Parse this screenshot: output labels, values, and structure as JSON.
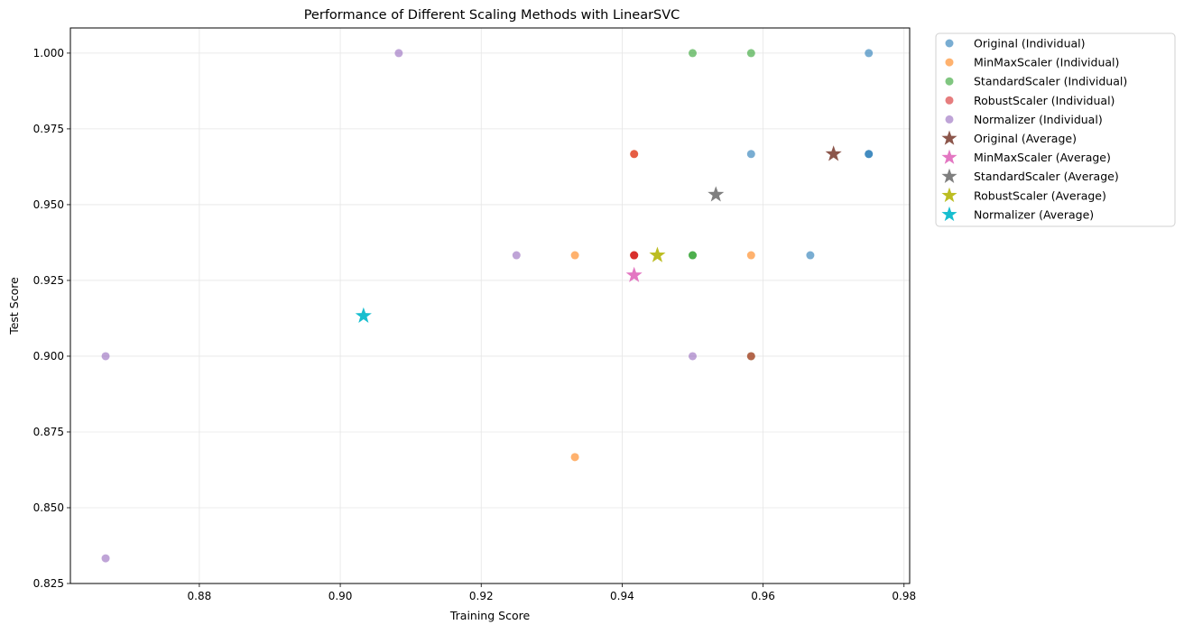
{
  "chart_data": {
    "type": "scatter",
    "title": "Performance of Different Scaling Methods with LinearSVC",
    "xlabel": "Training Score",
    "ylabel": "Test Score",
    "xlim": [
      0.8617,
      0.9808
    ],
    "ylim": [
      0.825,
      1.0083
    ],
    "x_ticks": [
      0.88,
      0.9,
      0.92,
      0.94,
      0.96,
      0.98
    ],
    "x_tick_labels": [
      "0.88",
      "0.90",
      "0.92",
      "0.94",
      "0.96",
      "0.98"
    ],
    "y_ticks": [
      0.825,
      0.85,
      0.875,
      0.9,
      0.925,
      0.95,
      0.975,
      1.0
    ],
    "y_tick_labels": [
      "0.825",
      "0.850",
      "0.875",
      "0.900",
      "0.925",
      "0.950",
      "0.975",
      "1.000"
    ],
    "grid": true,
    "legend_position": "outside-top-right",
    "series": [
      {
        "name": "Original (Individual)",
        "marker": "circle",
        "color": "#1f77b4",
        "points": [
          [
            0.975,
            1.0
          ],
          [
            0.9583,
            0.9667
          ],
          [
            0.975,
            0.9667
          ],
          [
            0.975,
            0.9667
          ],
          [
            0.9667,
            0.9333
          ]
        ]
      },
      {
        "name": "MinMaxScaler (Individual)",
        "marker": "circle",
        "color": "#ff7f0e",
        "points": [
          [
            0.9333,
            0.9333
          ],
          [
            0.9583,
            0.9333
          ],
          [
            0.9333,
            0.8667
          ],
          [
            0.9417,
            0.9333
          ],
          [
            0.9417,
            0.9667
          ]
        ]
      },
      {
        "name": "StandardScaler (Individual)",
        "marker": "circle",
        "color": "#2ca02c",
        "points": [
          [
            0.95,
            1.0
          ],
          [
            0.9583,
            1.0
          ],
          [
            0.95,
            0.9333
          ],
          [
            0.95,
            0.9333
          ],
          [
            0.9583,
            0.9
          ]
        ]
      },
      {
        "name": "RobustScaler (Individual)",
        "marker": "circle",
        "color": "#d62728",
        "points": [
          [
            0.9417,
            0.9667
          ],
          [
            0.9417,
            0.9333
          ],
          [
            0.9417,
            0.9333
          ],
          [
            0.9583,
            0.9
          ],
          [
            0.9417,
            0.9333
          ]
        ]
      },
      {
        "name": "Normalizer (Individual)",
        "marker": "circle",
        "color": "#9467bd",
        "points": [
          [
            0.9083,
            1.0
          ],
          [
            0.925,
            0.9333
          ],
          [
            0.8667,
            0.9
          ],
          [
            0.95,
            0.9
          ],
          [
            0.8667,
            0.8333
          ]
        ]
      },
      {
        "name": "Original (Average)",
        "marker": "star",
        "color": "#8c564b",
        "points": [
          [
            0.97,
            0.9667
          ]
        ]
      },
      {
        "name": "MinMaxScaler (Average)",
        "marker": "star",
        "color": "#e377c2",
        "points": [
          [
            0.9417,
            0.9267
          ]
        ]
      },
      {
        "name": "StandardScaler (Average)",
        "marker": "star",
        "color": "#7f7f7f",
        "points": [
          [
            0.9533,
            0.9533
          ]
        ]
      },
      {
        "name": "RobustScaler (Average)",
        "marker": "star",
        "color": "#bcbd22",
        "points": [
          [
            0.945,
            0.9333
          ]
        ]
      },
      {
        "name": "Normalizer (Average)",
        "marker": "star",
        "color": "#17becf",
        "points": [
          [
            0.9033,
            0.9133
          ]
        ]
      }
    ]
  }
}
